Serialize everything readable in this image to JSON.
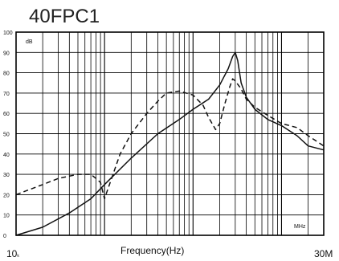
{
  "chart_data": {
    "type": "line",
    "title": "40FPC1",
    "xlabel": "Frequency(Hz)",
    "ylabel": "",
    "y_unit_label": "dB",
    "x_unit_label": "MHz",
    "x_scale": "log",
    "xlim_hz": [
      10000,
      30000000
    ],
    "x_tick_left": "10",
    "x_tick_left_sub": "k",
    "x_tick_right": "30M",
    "ylim": [
      0,
      100
    ],
    "y_ticks": [
      "0",
      "10",
      "20",
      "30",
      "40",
      "50",
      "60",
      "70",
      "80",
      "90",
      "100"
    ],
    "grid": true,
    "series": [
      {
        "style": "solid",
        "x_hz": [
          10000,
          20000,
          40000,
          70000,
          100000,
          200000,
          400000,
          700000,
          1000000,
          1500000,
          2000000,
          2500000,
          2800000,
          3000000,
          3200000,
          3500000,
          4000000,
          5000000,
          7000000,
          10000000,
          15000000,
          20000000,
          30000000
        ],
        "y_db": [
          0,
          4,
          11,
          18,
          25,
          38,
          50,
          57,
          62,
          67,
          74,
          82,
          88,
          90,
          86,
          75,
          68,
          62,
          57,
          54,
          49,
          44,
          42
        ]
      },
      {
        "style": "dashed",
        "x_hz": [
          10000,
          20000,
          30000,
          50000,
          70000,
          80000,
          90000,
          100000,
          120000,
          150000,
          200000,
          300000,
          400000,
          500000,
          700000,
          1000000,
          1300000,
          1500000,
          1800000,
          2000000,
          2300000,
          2600000,
          2800000,
          3000000,
          3500000,
          4000000,
          5000000,
          7000000,
          10000000,
          15000000,
          20000000,
          30000000
        ],
        "y_db": [
          20,
          25,
          28,
          30,
          30,
          28,
          26,
          18,
          28,
          40,
          50,
          60,
          66,
          70,
          71,
          69,
          64,
          58,
          52,
          55,
          65,
          73,
          77,
          76,
          72,
          67,
          63,
          59,
          55,
          53,
          49,
          44
        ]
      }
    ]
  }
}
